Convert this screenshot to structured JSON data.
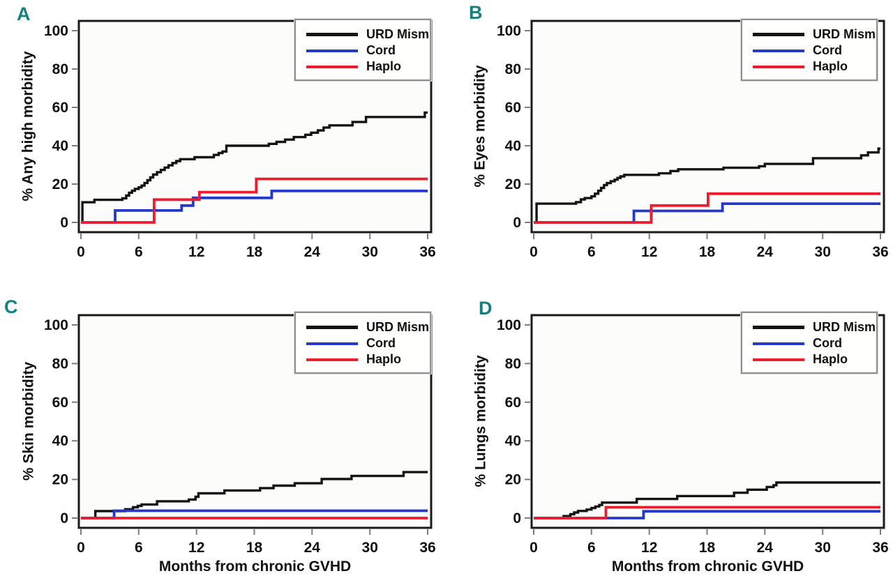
{
  "figure": {
    "panel_letter_color": "#15807c",
    "x_axis_title": "Months from chronic GVHD",
    "series_colors": {
      "urd_mism": "#141414",
      "cord": "#2438cc",
      "haplo": "#eb1c2d"
    }
  },
  "chart_data": [
    {
      "panel": "A",
      "type": "line",
      "subtype": "step-cumulative-incidence",
      "ylabel": "% Any high morbidity",
      "xlabel": "",
      "xlim": [
        0,
        36
      ],
      "ylim": [
        0,
        100
      ],
      "x_ticks": [
        0,
        6,
        12,
        18,
        24,
        30,
        36
      ],
      "y_ticks": [
        0,
        20,
        40,
        60,
        80,
        100
      ],
      "legend_position": "top-right",
      "series": [
        {
          "name": "URD Mism",
          "color": "#141414",
          "start": 0,
          "steps": [
            [
              0.15,
              10.5
            ],
            [
              1.4,
              11.8
            ],
            [
              4.3,
              12.6
            ],
            [
              4.7,
              14
            ],
            [
              5.0,
              15.5
            ],
            [
              5.3,
              16.5
            ],
            [
              5.6,
              17.5
            ],
            [
              6.0,
              18.3
            ],
            [
              6.3,
              19.2
            ],
            [
              6.6,
              20.6
            ],
            [
              6.9,
              22
            ],
            [
              7.2,
              23.5
            ],
            [
              7.5,
              25
            ],
            [
              7.9,
              26.2
            ],
            [
              8.3,
              27.4
            ],
            [
              8.7,
              28.6
            ],
            [
              9.1,
              29.8
            ],
            [
              9.5,
              31
            ],
            [
              9.9,
              32
            ],
            [
              10.3,
              33
            ],
            [
              11.8,
              34
            ],
            [
              13.8,
              35.2
            ],
            [
              14.3,
              36.2
            ],
            [
              14.7,
              37
            ],
            [
              15.1,
              40
            ],
            [
              19.5,
              41
            ],
            [
              20.3,
              42
            ],
            [
              21.2,
              43.2
            ],
            [
              22.1,
              44.5
            ],
            [
              23.3,
              45.7
            ],
            [
              23.9,
              46.8
            ],
            [
              24.6,
              48
            ],
            [
              25.2,
              49.5
            ],
            [
              25.8,
              50.6
            ],
            [
              28.2,
              52.4
            ],
            [
              29.6,
              55
            ],
            [
              35.7,
              57.3
            ]
          ]
        },
        {
          "name": "Cord",
          "color": "#2438cc",
          "start": 0,
          "steps": [
            [
              3.55,
              6.2
            ],
            [
              10.45,
              8.8
            ],
            [
              11.65,
              12.8
            ],
            [
              19.8,
              16.4
            ]
          ]
        },
        {
          "name": "Haplo",
          "color": "#eb1c2d",
          "start": 0,
          "steps": [
            [
              7.6,
              11.9
            ],
            [
              12.3,
              15.8
            ],
            [
              18.2,
              22.7
            ]
          ]
        }
      ]
    },
    {
      "panel": "B",
      "type": "line",
      "subtype": "step-cumulative-incidence",
      "ylabel": "% Eyes morbidity",
      "xlabel": "",
      "xlim": [
        0,
        36
      ],
      "ylim": [
        0,
        100
      ],
      "x_ticks": [
        0,
        6,
        12,
        18,
        24,
        30,
        36
      ],
      "y_ticks": [
        0,
        20,
        40,
        60,
        80,
        100
      ],
      "legend_position": "top-right",
      "series": [
        {
          "name": "URD Mism",
          "color": "#141414",
          "start": 0,
          "steps": [
            [
              0.3,
              9.8
            ],
            [
              4.4,
              10.6
            ],
            [
              4.9,
              12
            ],
            [
              5.3,
              12.7
            ],
            [
              6.0,
              13.6
            ],
            [
              6.35,
              15
            ],
            [
              6.7,
              16.5
            ],
            [
              7.0,
              18
            ],
            [
              7.3,
              19.5
            ],
            [
              7.6,
              20.5
            ],
            [
              8.0,
              21.5
            ],
            [
              8.4,
              22.3
            ],
            [
              8.7,
              23.2
            ],
            [
              9.0,
              24
            ],
            [
              9.4,
              24.8
            ],
            [
              13.0,
              25.6
            ],
            [
              14.2,
              26.8
            ],
            [
              15.0,
              27.7
            ],
            [
              19.7,
              28.5
            ],
            [
              23.4,
              29.3
            ],
            [
              24.0,
              30.5
            ],
            [
              29.0,
              33.5
            ],
            [
              34.0,
              35
            ],
            [
              34.7,
              36.5
            ],
            [
              35.8,
              38.5
            ]
          ]
        },
        {
          "name": "Cord",
          "color": "#2438cc",
          "start": 0,
          "steps": [
            [
              10.4,
              6
            ],
            [
              19.6,
              9.8
            ]
          ]
        },
        {
          "name": "Haplo",
          "color": "#eb1c2d",
          "start": 0,
          "steps": [
            [
              12.2,
              8.8
            ],
            [
              18.1,
              15
            ]
          ]
        }
      ]
    },
    {
      "panel": "C",
      "type": "line",
      "subtype": "step-cumulative-incidence",
      "ylabel": "% Skin morbidity",
      "xlabel": "Months from chronic GVHD",
      "xlim": [
        0,
        36
      ],
      "ylim": [
        0,
        100
      ],
      "x_ticks": [
        0,
        6,
        12,
        18,
        24,
        30,
        36
      ],
      "y_ticks": [
        0,
        20,
        40,
        60,
        80,
        100
      ],
      "legend_position": "top-right",
      "series": [
        {
          "name": "URD Mism",
          "color": "#141414",
          "start": 0,
          "steps": [
            [
              1.5,
              3.6
            ],
            [
              4.6,
              4.6
            ],
            [
              5.4,
              5.6
            ],
            [
              5.9,
              6.3
            ],
            [
              6.3,
              7
            ],
            [
              7.9,
              8.7
            ],
            [
              11.2,
              9.6
            ],
            [
              11.9,
              11
            ],
            [
              12.2,
              12.8
            ],
            [
              14.9,
              14.3
            ],
            [
              18.6,
              15.5
            ],
            [
              20.0,
              16.8
            ],
            [
              22.2,
              18
            ],
            [
              25.0,
              20.2
            ],
            [
              28.1,
              21.8
            ],
            [
              33.5,
              23.8
            ]
          ]
        },
        {
          "name": "Cord",
          "color": "#2438cc",
          "start": 0,
          "steps": [
            [
              3.45,
              3.8
            ]
          ]
        },
        {
          "name": "Haplo",
          "color": "#eb1c2d",
          "start": 0,
          "steps": []
        }
      ]
    },
    {
      "panel": "D",
      "type": "line",
      "subtype": "step-cumulative-incidence",
      "ylabel": "% Lungs morbidity",
      "xlabel": "Months from chronic GVHD",
      "xlim": [
        0,
        36
      ],
      "ylim": [
        0,
        100
      ],
      "x_ticks": [
        0,
        6,
        12,
        18,
        24,
        30,
        36
      ],
      "y_ticks": [
        0,
        20,
        40,
        60,
        80,
        100
      ],
      "legend_position": "top-right",
      "series": [
        {
          "name": "URD Mism",
          "color": "#141414",
          "start": 0,
          "steps": [
            [
              3.1,
              1
            ],
            [
              3.8,
              2
            ],
            [
              4.2,
              2.9
            ],
            [
              4.6,
              3.7
            ],
            [
              5.5,
              4.4
            ],
            [
              6.0,
              5.2
            ],
            [
              6.4,
              6
            ],
            [
              6.8,
              6.8
            ],
            [
              7.1,
              8
            ],
            [
              10.7,
              9.9
            ],
            [
              14.9,
              11.4
            ],
            [
              20.8,
              13.1
            ],
            [
              22.2,
              14.7
            ],
            [
              24.2,
              16.1
            ],
            [
              24.9,
              17
            ],
            [
              25.2,
              18.4
            ]
          ]
        },
        {
          "name": "Cord",
          "color": "#2438cc",
          "start": 0,
          "steps": [
            [
              11.4,
              3.5
            ]
          ]
        },
        {
          "name": "Haplo",
          "color": "#eb1c2d",
          "start": 0,
          "steps": [
            [
              7.5,
              5.6
            ]
          ]
        }
      ]
    }
  ]
}
